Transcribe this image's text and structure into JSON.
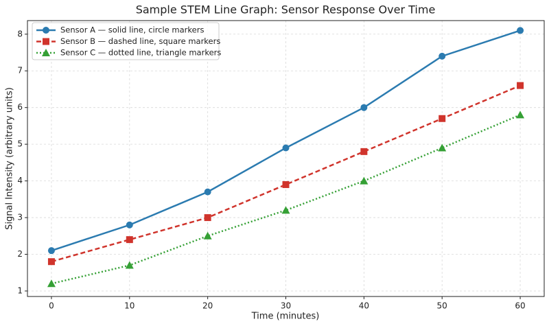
{
  "chart_data": {
    "type": "line",
    "title": "Sample STEM Line Graph: Sensor Response Over Time",
    "xlabel": "Time (minutes)",
    "ylabel": "Signal Intensity (arbitrary units)",
    "x": [
      0,
      10,
      20,
      30,
      40,
      50,
      60
    ],
    "series": [
      {
        "name": "Sensor A — solid line, circle markers",
        "color": "#2b7bb0",
        "linestyle": "solid",
        "marker": "circle",
        "values": [
          2.1,
          2.8,
          3.7,
          4.9,
          6.0,
          7.4,
          8.1
        ]
      },
      {
        "name": "Sensor B — dashed line, square markers",
        "color": "#d0342c",
        "linestyle": "dashed",
        "marker": "square",
        "values": [
          1.8,
          2.4,
          3.0,
          3.9,
          4.8,
          5.7,
          6.6
        ]
      },
      {
        "name": "Sensor C — dotted line, triangle markers",
        "color": "#35a035",
        "linestyle": "dotted",
        "marker": "triangle",
        "values": [
          1.2,
          1.7,
          2.5,
          3.2,
          4.0,
          4.9,
          5.8
        ]
      }
    ],
    "xlim": [
      -3.07,
      63.07
    ],
    "ylim": [
      0.85,
      8.37
    ],
    "xticks": [
      0,
      10,
      20,
      30,
      40,
      50,
      60
    ],
    "yticks": [
      1,
      2,
      3,
      4,
      5,
      6,
      7,
      8
    ],
    "grid": true,
    "legend": "upper left"
  }
}
